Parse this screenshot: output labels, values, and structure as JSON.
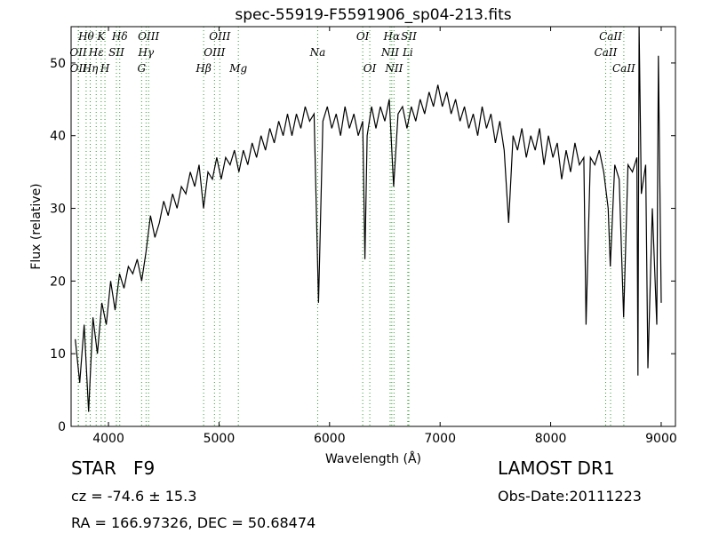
{
  "chart_data": {
    "type": "line",
    "title": "spec-55919-F5591906_sp04-213.fits",
    "x_label": "Wavelength (Å)",
    "y_label": "Flux (relative)",
    "xlim": [
      3662,
      9129
    ],
    "ylim": [
      0,
      55
    ],
    "xticks": [
      4000,
      5000,
      6000,
      7000,
      8000,
      9000
    ],
    "yticks": [
      0,
      10,
      20,
      30,
      40,
      50
    ],
    "color": "#000000",
    "line_color": "#2ca02c",
    "x": [
      3700,
      3740,
      3780,
      3820,
      3860,
      3900,
      3940,
      3980,
      4020,
      4060,
      4100,
      4140,
      4180,
      4220,
      4260,
      4300,
      4340,
      4380,
      4420,
      4460,
      4500,
      4540,
      4580,
      4620,
      4660,
      4700,
      4740,
      4780,
      4820,
      4860,
      4900,
      4940,
      4980,
      5020,
      5060,
      5100,
      5140,
      5180,
      5220,
      5260,
      5300,
      5340,
      5380,
      5420,
      5460,
      5500,
      5540,
      5580,
      5620,
      5660,
      5700,
      5740,
      5780,
      5820,
      5860,
      5900,
      5940,
      5980,
      6020,
      6060,
      6100,
      6140,
      6180,
      6220,
      6260,
      6300,
      6320,
      6340,
      6380,
      6420,
      6460,
      6500,
      6540,
      6580,
      6620,
      6660,
      6700,
      6740,
      6780,
      6820,
      6860,
      6900,
      6940,
      6980,
      7020,
      7060,
      7100,
      7140,
      7180,
      7220,
      7260,
      7300,
      7340,
      7380,
      7420,
      7460,
      7500,
      7540,
      7580,
      7620,
      7660,
      7700,
      7740,
      7780,
      7820,
      7860,
      7900,
      7940,
      7980,
      8020,
      8060,
      8100,
      8140,
      8180,
      8220,
      8260,
      8300,
      8320,
      8360,
      8400,
      8440,
      8480,
      8520,
      8540,
      8580,
      8620,
      8660,
      8700,
      8740,
      8780,
      8790,
      8800,
      8820,
      8860,
      8880,
      8920,
      8960,
      8975,
      9000
    ],
    "values": [
      12,
      6,
      14,
      2,
      15,
      10,
      17,
      14,
      20,
      16,
      21,
      19,
      22,
      21,
      23,
      20,
      24,
      29,
      26,
      28,
      31,
      29,
      32,
      30,
      33,
      32,
      35,
      33,
      36,
      30,
      35,
      34,
      37,
      34,
      37,
      36,
      38,
      35,
      38,
      36,
      39,
      37,
      40,
      38,
      41,
      39,
      42,
      40,
      43,
      40,
      43,
      41,
      44,
      42,
      43,
      17,
      42,
      44,
      41,
      43,
      40,
      44,
      41,
      43,
      40,
      42,
      23,
      40,
      44,
      41,
      44,
      42,
      45,
      33,
      43,
      44,
      41,
      44,
      42,
      45,
      43,
      46,
      44,
      47,
      44,
      46,
      43,
      45,
      42,
      44,
      41,
      43,
      40,
      44,
      41,
      43,
      39,
      42,
      38,
      28,
      40,
      38,
      41,
      37,
      40,
      38,
      41,
      36,
      40,
      37,
      39,
      34,
      38,
      35,
      39,
      36,
      37,
      14,
      37,
      36,
      38,
      35,
      30,
      22,
      36,
      34,
      15,
      36,
      35,
      37,
      7,
      55,
      32,
      36,
      8,
      30,
      14,
      51,
      17
    ],
    "spectral_lines": [
      {
        "wavelength": 3798,
        "label": "Hθ"
      },
      {
        "wavelength": 3727,
        "label": "OII"
      },
      {
        "wavelength": 3729,
        "label": "OII"
      },
      {
        "wavelength": 3934,
        "label": "K"
      },
      {
        "wavelength": 3889,
        "label": "Hε"
      },
      {
        "wavelength": 3835,
        "label": "Hη"
      },
      {
        "wavelength": 4102,
        "label": "Hδ"
      },
      {
        "wavelength": 4072,
        "label": "SII"
      },
      {
        "wavelength": 3968,
        "label": "H"
      },
      {
        "wavelength": 4363,
        "label": "OIII"
      },
      {
        "wavelength": 4340,
        "label": "Hγ"
      },
      {
        "wavelength": 4300,
        "label": "G"
      },
      {
        "wavelength": 5007,
        "label": "OIII"
      },
      {
        "wavelength": 4959,
        "label": "OIII"
      },
      {
        "wavelength": 4861,
        "label": "Hβ"
      },
      {
        "wavelength": 6300,
        "label": "OI"
      },
      {
        "wavelength": 5893,
        "label": "Na"
      },
      {
        "wavelength": 5175,
        "label": "Mg"
      },
      {
        "wavelength": 6563,
        "label": "Hα"
      },
      {
        "wavelength": 6548,
        "label": "NII"
      },
      {
        "wavelength": 6364,
        "label": "OI"
      },
      {
        "wavelength": 6717,
        "label": "SII"
      },
      {
        "wavelength": 6708,
        "label": "Li"
      },
      {
        "wavelength": 6583,
        "label": "NII"
      },
      {
        "wavelength": 8542,
        "label": "CaII"
      },
      {
        "wavelength": 8498,
        "label": "CaII"
      },
      {
        "wavelength": 8662,
        "label": "CaII"
      }
    ],
    "object": "STAR   F9",
    "redshift": "cz = -74.6 ± 15.3",
    "coordinates": "RA = 166.97326, DEC = 50.68474",
    "survey": "LAMOST DR1",
    "obs_date": "Obs-Date:20111223"
  }
}
